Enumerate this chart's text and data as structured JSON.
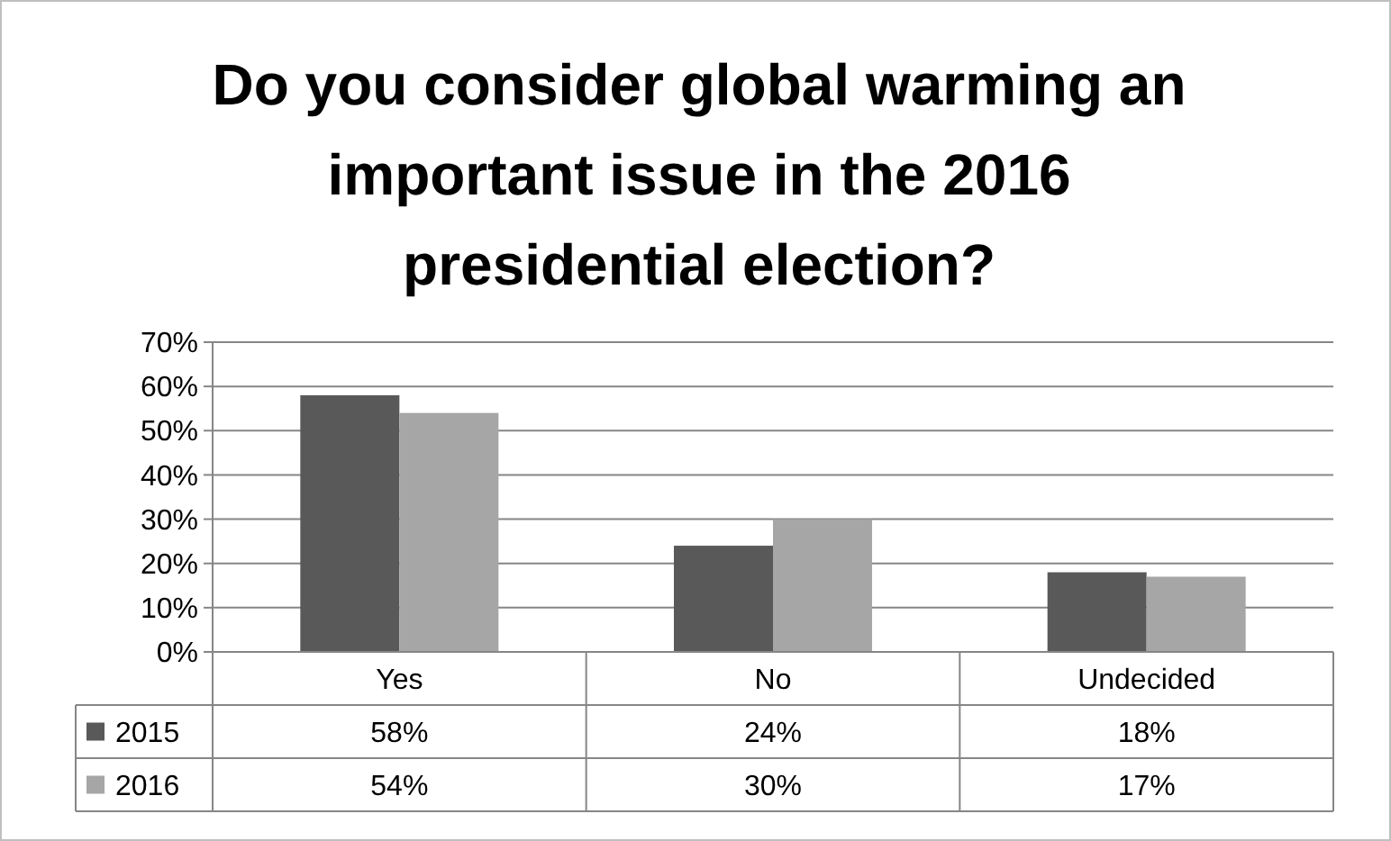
{
  "chart_data": {
    "type": "bar",
    "title": "Do you consider global warming an important issue in the 2016 presidential election?",
    "categories": [
      "Yes",
      "No",
      "Undecided"
    ],
    "series": [
      {
        "name": "2015",
        "color": "#595959",
        "values": [
          58,
          24,
          18
        ],
        "value_labels": [
          "58%",
          "24%",
          "18%"
        ]
      },
      {
        "name": "2016",
        "color": "#a6a6a6",
        "values": [
          54,
          30,
          17
        ],
        "value_labels": [
          "54%",
          "30%",
          "17%"
        ]
      }
    ],
    "ylim": [
      0,
      70
    ],
    "yticks": [
      {
        "value": 0,
        "label": "0%"
      },
      {
        "value": 10,
        "label": "10%"
      },
      {
        "value": 20,
        "label": "20%"
      },
      {
        "value": 30,
        "label": "30%"
      },
      {
        "value": 40,
        "label": "40%"
      },
      {
        "value": 50,
        "label": "50%"
      },
      {
        "value": 60,
        "label": "60%"
      },
      {
        "value": 70,
        "label": "70%"
      }
    ],
    "grid": "y",
    "legend": "bottom"
  }
}
